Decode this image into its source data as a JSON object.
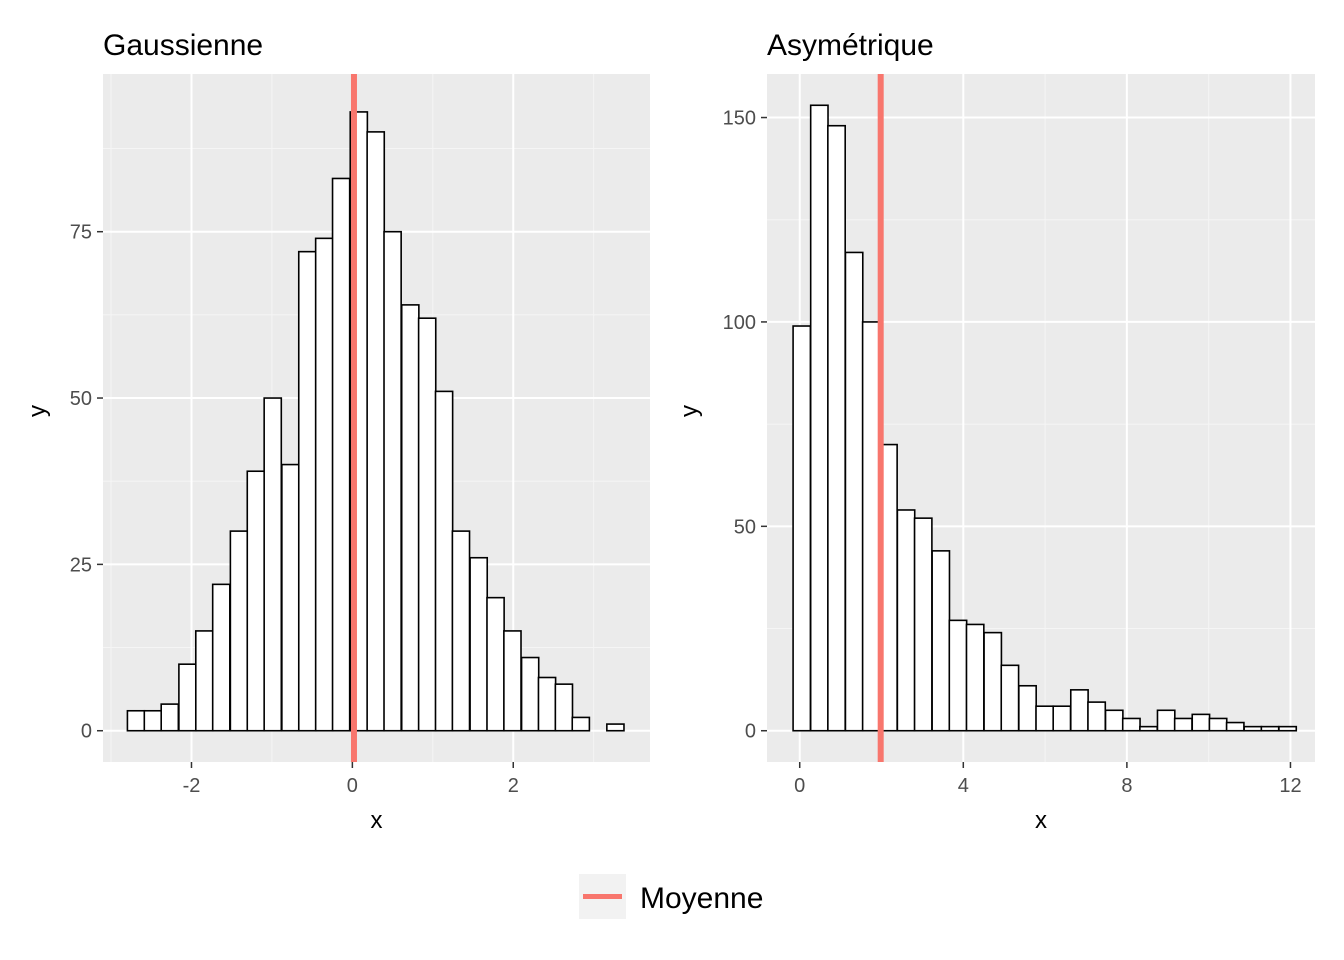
{
  "colors": {
    "panel_background": "#ebebeb",
    "major_grid": "#ffffff",
    "minor_grid": "#f5f5f5",
    "bar_fill": "#ffffff",
    "bar_outline": "#000000",
    "mean_line": "#f8766d",
    "tick_text": "#4d4d4d",
    "legend_key_background": "#f2f2f2"
  },
  "legend": {
    "position": "bottom",
    "label": "Moyenne"
  },
  "chart_data": [
    {
      "type": "bar",
      "title": "Gaussienne",
      "xlabel": "x",
      "ylabel": "y",
      "xlim": [
        -3.1,
        3.7
      ],
      "ylim": [
        -4.7,
        98.7
      ],
      "x_ticks": [
        -2,
        0,
        2
      ],
      "x_tick_labels": [
        "-2",
        "0",
        "2"
      ],
      "y_ticks": [
        0,
        25,
        50,
        75
      ],
      "y_tick_labels": [
        "0",
        "25",
        "50",
        "75"
      ],
      "grid": true,
      "bin_width": 0.213,
      "bin_centers": [
        -2.69,
        -2.48,
        -2.27,
        -2.05,
        -1.84,
        -1.63,
        -1.41,
        -1.2,
        -0.99,
        -0.77,
        -0.56,
        -0.35,
        -0.14,
        0.08,
        0.29,
        0.5,
        0.72,
        0.93,
        1.14,
        1.35,
        1.57,
        1.78,
        1.99,
        2.21,
        2.42,
        2.63,
        2.84,
        3.06,
        3.27
      ],
      "values": [
        3,
        3,
        4,
        10,
        15,
        22,
        30,
        39,
        50,
        40,
        72,
        74,
        83,
        93,
        90,
        75,
        64,
        62,
        51,
        30,
        26,
        20,
        15,
        11,
        8,
        7,
        2,
        0,
        1
      ],
      "mean": 0.02
    },
    {
      "type": "bar",
      "title": "Asymétrique",
      "xlabel": "x",
      "ylabel": "y",
      "xlim": [
        -0.8,
        12.6
      ],
      "ylim": [
        -7.65,
        160.65
      ],
      "x_ticks": [
        0,
        4,
        8,
        12
      ],
      "x_tick_labels": [
        "0",
        "4",
        "8",
        "12"
      ],
      "y_ticks": [
        0,
        50,
        100,
        150
      ],
      "y_tick_labels": [
        "0",
        "50",
        "100",
        "150"
      ],
      "grid": true,
      "bin_width": 0.424,
      "bin_centers": [
        0.05,
        0.48,
        0.9,
        1.33,
        1.75,
        2.17,
        2.6,
        3.02,
        3.45,
        3.87,
        4.29,
        4.72,
        5.14,
        5.57,
        5.99,
        6.41,
        6.84,
        7.26,
        7.69,
        8.11,
        8.53,
        8.96,
        9.38,
        9.81,
        10.23,
        10.65,
        11.08,
        11.5,
        11.93
      ],
      "values": [
        99,
        153,
        148,
        117,
        100,
        70,
        54,
        52,
        44,
        27,
        26,
        24,
        16,
        11,
        6,
        6,
        10,
        7,
        5,
        3,
        1,
        5,
        3,
        4,
        3,
        2,
        1,
        1,
        1
      ],
      "mean": 1.98
    }
  ]
}
